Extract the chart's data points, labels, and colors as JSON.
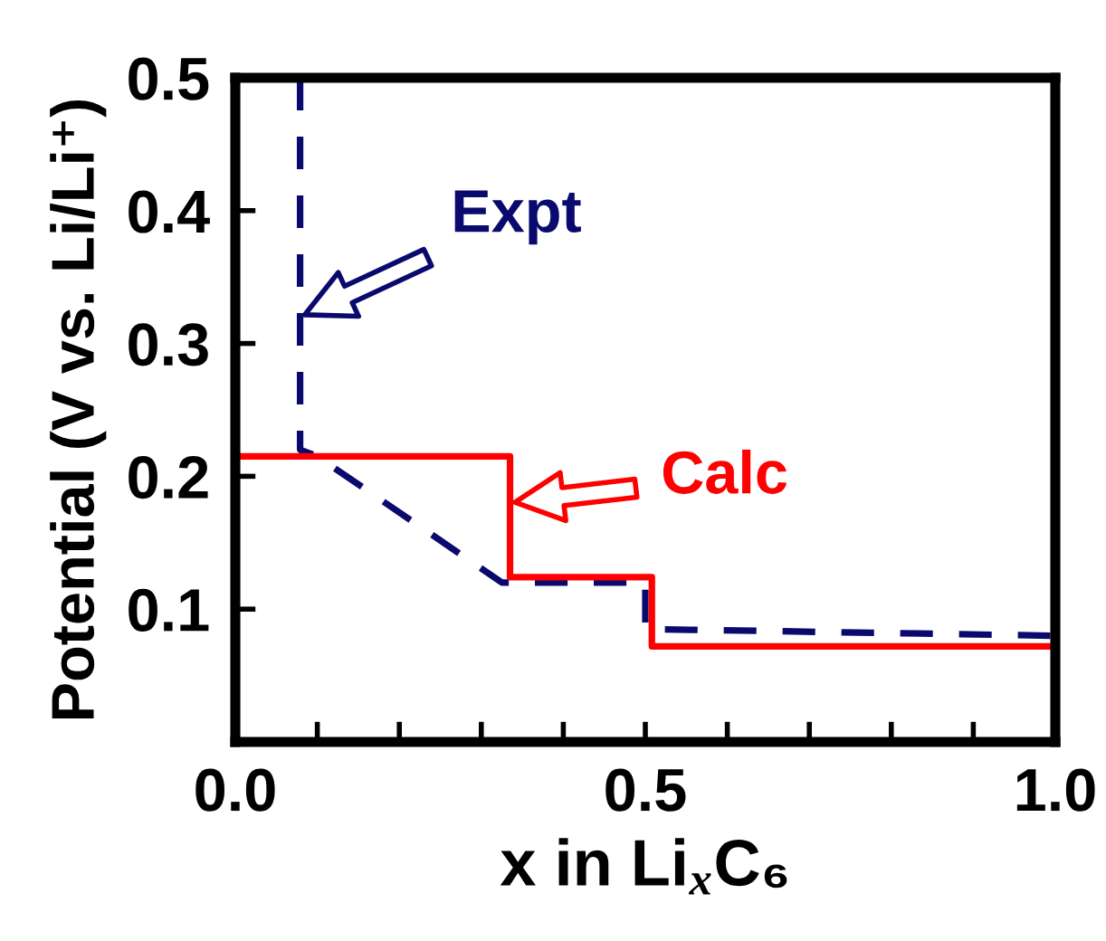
{
  "chart_data": {
    "type": "line",
    "xlabel": "x in Li$_{x}$C₆",
    "ylabel": "Potential (V vs. Li/Li⁺)",
    "xlim": [
      0,
      1.0
    ],
    "ylim": [
      0,
      0.5
    ],
    "xticks": [
      {
        "value": 0,
        "label": "0.0"
      },
      {
        "value": 0.1,
        "label": null
      },
      {
        "value": 0.2,
        "label": null
      },
      {
        "value": 0.3,
        "label": null
      },
      {
        "value": 0.4,
        "label": null
      },
      {
        "value": 0.5,
        "label": "0.5"
      },
      {
        "value": 0.6,
        "label": null
      },
      {
        "value": 0.7,
        "label": null
      },
      {
        "value": 0.8,
        "label": null
      },
      {
        "value": 0.9,
        "label": null
      },
      {
        "value": 1.0,
        "label": "1.0"
      }
    ],
    "yticks": [
      0.1,
      0.2,
      0.3,
      0.4,
      0.5
    ],
    "grid": false,
    "legend": false,
    "marker": "none",
    "series": [
      {
        "color": "#0a0a6e",
        "line_style": "dashed",
        "x": [
          0.079,
          0.079,
          0.1,
          0.325,
          0.5,
          0.5,
          0.994
        ],
        "values": [
          0.5,
          0.22,
          0.215,
          0.12,
          0.12,
          0.085,
          0.08
        ]
      },
      {
        "color": "#ff0000",
        "line_style": "solid",
        "x": [
          0,
          0.335,
          0.335,
          0.508,
          0.508,
          1.0
        ],
        "values": [
          0.215,
          0.215,
          0.124,
          0.124,
          0.072,
          0.072
        ]
      }
    ],
    "annotations": [
      {
        "text": "Expt",
        "x": 0.079,
        "y": 0.32
      },
      {
        "text": "Calc",
        "x": 0.335,
        "y": 0.18
      }
    ]
  }
}
